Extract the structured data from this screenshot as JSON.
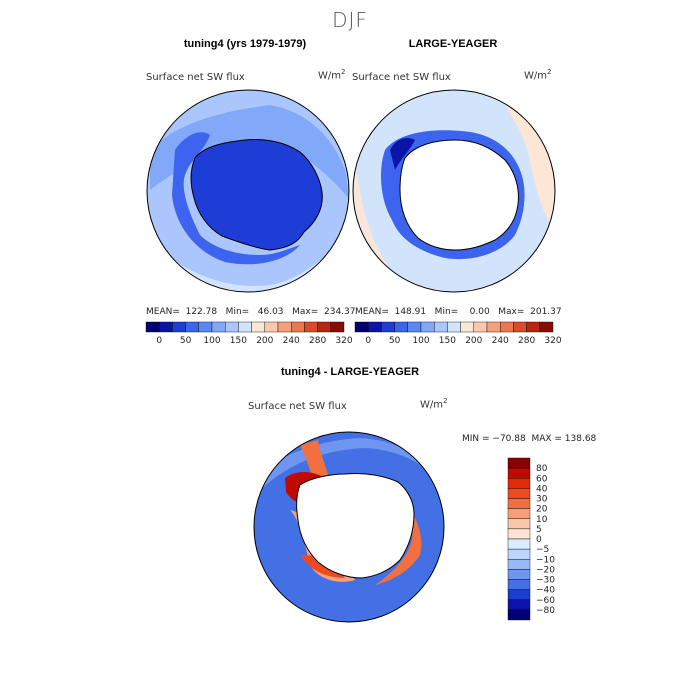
{
  "figure": {
    "title": "DJF"
  },
  "units": "W/m",
  "units_exp": "2",
  "chart_data": [
    {
      "type": "heatmap",
      "panel": "tuning4",
      "title": "tuning4 (yrs 1979-1979)",
      "variable": "Surface net SW flux",
      "region": "Antarctic polar stereographic",
      "stats": {
        "mean": 122.78,
        "min": 46.03,
        "max": 234.37
      },
      "stats_text": "MEAN=  122.78   Min=   46.03   Max=  234.37",
      "colorbar_levels": [
        0,
        50,
        100,
        150,
        200,
        240,
        280,
        320
      ],
      "colorbar_labels": [
        "0",
        "50",
        "100",
        "150",
        "200",
        "240",
        "280",
        "320"
      ]
    },
    {
      "type": "heatmap",
      "panel": "LARGE-YEAGER",
      "title": "LARGE-YEAGER",
      "variable": "Surface net SW flux",
      "region": "Antarctic polar stereographic",
      "stats": {
        "mean": 148.91,
        "min": 0.0,
        "max": 201.37
      },
      "stats_text": "MEAN=  148.91   Min=    0.00   Max=  201.37",
      "colorbar_levels": [
        0,
        50,
        100,
        150,
        200,
        240,
        280,
        320
      ],
      "colorbar_labels": [
        "0",
        "50",
        "100",
        "150",
        "200",
        "240",
        "280",
        "320"
      ]
    },
    {
      "type": "heatmap",
      "panel": "difference",
      "title": "tuning4 - LARGE-YEAGER",
      "variable": "Surface net SW flux",
      "region": "Antarctic polar stereographic",
      "stats": {
        "min": -70.88,
        "max": 138.68
      },
      "stats_text": "MIN = −70.88  MAX = 138.68",
      "colorbar_levels": [
        80,
        60,
        40,
        30,
        20,
        10,
        5,
        0,
        -5,
        -10,
        -20,
        -30,
        -40,
        -60,
        -80
      ],
      "colorbar_labels": [
        "80",
        "60",
        "40",
        "30",
        "20",
        "10",
        "5",
        "0",
        "−5",
        "−10",
        "−20",
        "−30",
        "−40",
        "−60",
        "−80"
      ]
    }
  ],
  "palettes": {
    "absolute": [
      "#00006e",
      "#0a14a8",
      "#1e3cd6",
      "#3c64ee",
      "#5a87f5",
      "#82a8fa",
      "#aac6fc",
      "#d2e4fc",
      "#fce6d6",
      "#fac8aa",
      "#f5a07c",
      "#ee7650",
      "#dc4a2a",
      "#bc2412",
      "#8a0a04"
    ],
    "difference": [
      "#8a0000",
      "#c00a00",
      "#e02a08",
      "#ee4a20",
      "#f27040",
      "#f6a07a",
      "#f9c6ac",
      "#fbe4d4",
      "#dcecff",
      "#bcd4fc",
      "#98b8f8",
      "#6e96f0",
      "#4470e6",
      "#1a3ed2",
      "#0a14a8",
      "#000078"
    ],
    "land": "#ffffff",
    "coast": "#000000"
  }
}
